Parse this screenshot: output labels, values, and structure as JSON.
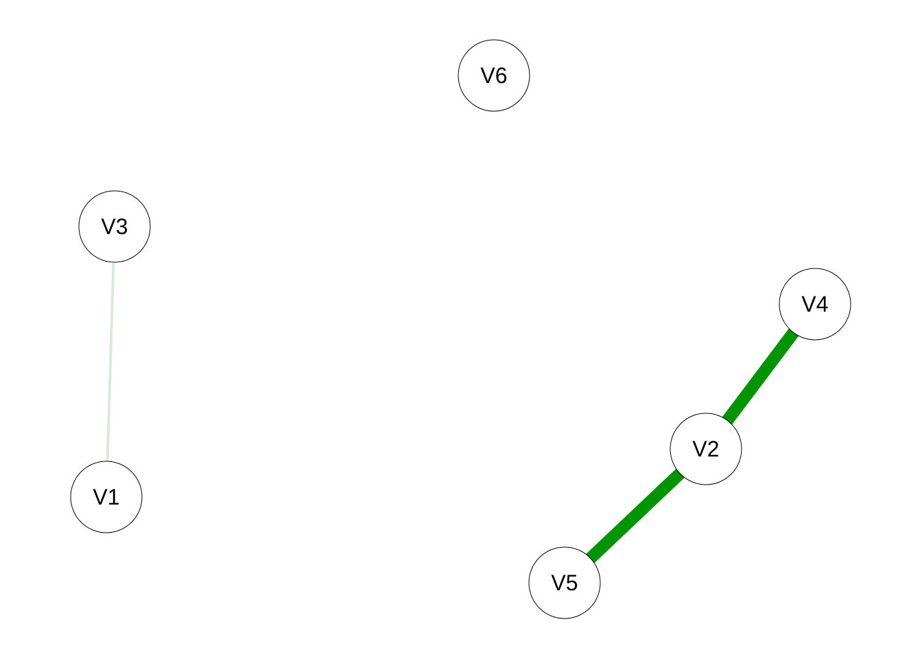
{
  "graph": {
    "nodes": [
      {
        "id": "V1",
        "label": "V1"
      },
      {
        "id": "V2",
        "label": "V2"
      },
      {
        "id": "V3",
        "label": "V3"
      },
      {
        "id": "V4",
        "label": "V4"
      },
      {
        "id": "V5",
        "label": "V5"
      },
      {
        "id": "V6",
        "label": "V6"
      }
    ],
    "edges": [
      {
        "source": "V3",
        "target": "V1",
        "color": "#d6ecd6",
        "weight": "weak"
      },
      {
        "source": "V2",
        "target": "V4",
        "color": "#009400",
        "weight": "strong"
      },
      {
        "source": "V2",
        "target": "V5",
        "color": "#009400",
        "weight": "strong"
      }
    ]
  }
}
